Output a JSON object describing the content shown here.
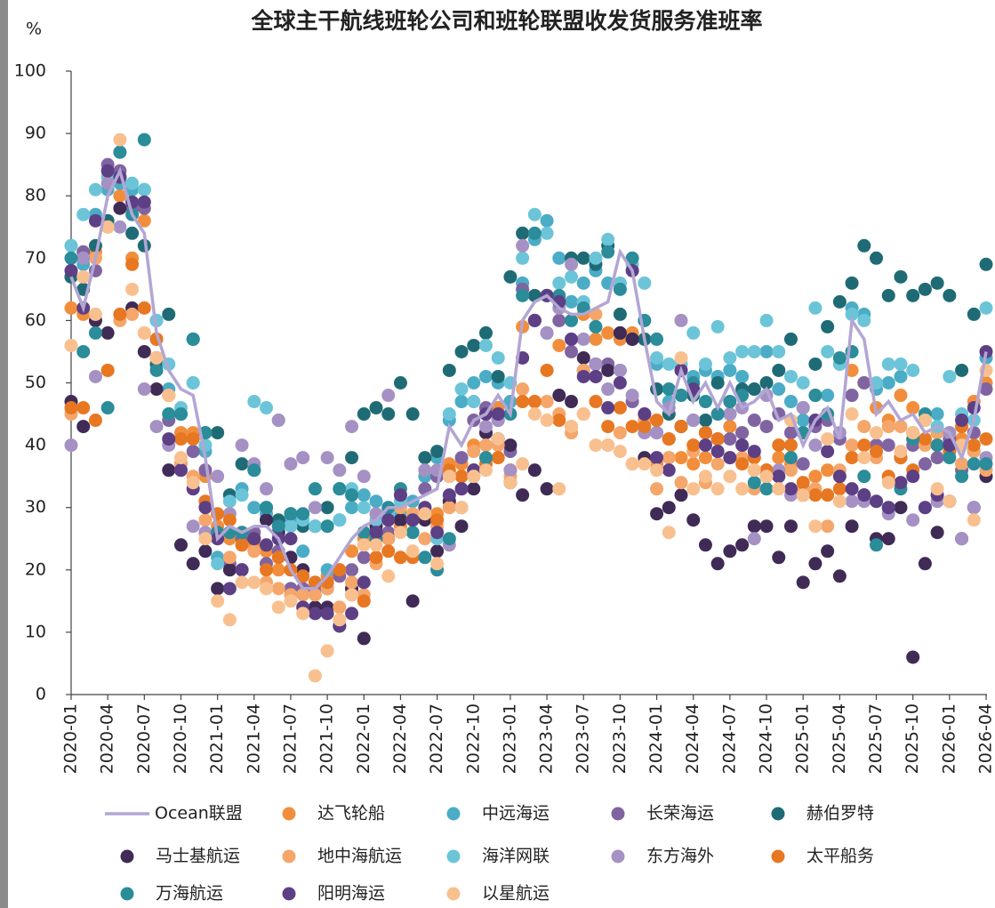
{
  "chart_data": {
    "type": "scatter",
    "title": "全球主干航线班轮公司和班轮联盟收发货服务准班率",
    "y_label": "%",
    "categories": [
      "2020-01",
      null,
      null,
      "2020-04",
      null,
      null,
      "2020-07",
      null,
      null,
      "2020-10",
      null,
      null,
      "2021-01",
      null,
      null,
      "2021-04",
      null,
      null,
      "2021-07",
      null,
      null,
      "2021-10",
      null,
      null,
      "2022-01",
      null,
      null,
      "2022-04",
      null,
      null,
      "2022-07",
      null,
      null,
      "2022-10",
      null,
      null,
      "2023-01",
      null,
      null,
      "2023-04",
      null,
      null,
      "2023-07",
      null,
      null,
      "2023-10",
      null,
      null,
      "2024-01",
      null,
      null,
      "2024-04",
      null,
      null,
      "2024-07",
      null,
      null,
      "2024-10",
      null,
      null,
      "2025-01",
      null,
      null,
      "2025-04",
      null,
      null,
      "2025-07",
      null,
      null,
      "2025-10",
      null,
      null,
      "2026-01",
      null,
      null,
      "2026-04"
    ],
    "ylim": [
      0,
      100
    ],
    "yticks": [
      0,
      10,
      20,
      30,
      40,
      50,
      60,
      70,
      80,
      90,
      100
    ],
    "grid": false,
    "series": [
      {
        "name": "Ocean联盟",
        "marker": "line",
        "color": "#b3a6d4",
        "values": [
          67,
          62,
          70,
          80,
          84,
          77,
          74,
          58,
          52,
          49,
          48,
          38,
          25,
          27,
          26,
          27,
          27,
          25,
          20,
          17,
          17,
          19,
          22,
          25,
          27,
          28,
          30,
          30,
          31,
          32,
          33,
          43,
          40,
          44,
          45,
          48,
          45,
          60,
          63,
          64,
          62,
          61,
          61,
          62,
          63,
          71,
          68,
          57,
          47,
          45,
          52,
          47,
          50,
          46,
          50,
          46,
          47,
          49,
          44,
          45,
          40,
          44,
          46,
          41,
          60,
          57,
          45,
          47,
          44,
          45,
          42,
          43,
          42,
          38,
          44,
          55
        ]
      },
      {
        "name": "达飞轮船",
        "marker": "circle",
        "color": "#f28e3b",
        "values": [
          62,
          61,
          71,
          75,
          80,
          70,
          76,
          57,
          48,
          42,
          42,
          35,
          27,
          25,
          26,
          24,
          23,
          20,
          20,
          20,
          18,
          19,
          20,
          23,
          25,
          26,
          28,
          27,
          28,
          29,
          29,
          37,
          37,
          40,
          42,
          46,
          36,
          59,
          60,
          64,
          56,
          63,
          61,
          57,
          58,
          57,
          58,
          44,
          37,
          38,
          38,
          37,
          38,
          41,
          43,
          42,
          36,
          36,
          38,
          37,
          32,
          35,
          36,
          35,
          52,
          50,
          46,
          44,
          48,
          46,
          44,
          42,
          40,
          41,
          47,
          50
        ]
      },
      {
        "name": "中远海运",
        "marker": "circle",
        "color": "#4bacc6",
        "values": [
          72,
          69,
          77,
          81,
          82,
          81,
          81,
          60,
          49,
          45,
          50,
          39,
          22,
          32,
          33,
          30,
          29,
          27,
          28,
          23,
          18,
          20,
          28,
          30,
          32,
          31,
          30,
          29,
          31,
          35,
          38,
          44,
          47,
          50,
          51,
          50,
          47,
          66,
          73,
          76,
          70,
          63,
          66,
          68,
          66,
          52,
          57,
          57,
          53,
          47,
          52,
          51,
          52,
          51,
          52,
          51,
          49,
          55,
          49,
          47,
          44,
          48,
          48,
          53,
          62,
          61,
          49,
          50,
          51,
          42,
          44,
          45,
          42,
          40,
          39,
          54
        ]
      },
      {
        "name": "长荣海运",
        "marker": "circle",
        "color": "#8064a2",
        "values": [
          67,
          71,
          68,
          85,
          84,
          78,
          78,
          54,
          44,
          37,
          39,
          36,
          26,
          21,
          25,
          26,
          21,
          23,
          17,
          17,
          17,
          17,
          19,
          20,
          22,
          25,
          26,
          28,
          28,
          33,
          35,
          35,
          38,
          44,
          46,
          44,
          39,
          65,
          60,
          58,
          60,
          55,
          52,
          51,
          53,
          58,
          47,
          45,
          42,
          41,
          43,
          44,
          42,
          41,
          41,
          42,
          44,
          43,
          45,
          42,
          37,
          43,
          44,
          41,
          48,
          50,
          40,
          40,
          38,
          40,
          37,
          38,
          41,
          36,
          42,
          49
        ]
      },
      {
        "name": "赫伯罗特",
        "marker": "circle",
        "color": "#1f6b75",
        "values": [
          67,
          65,
          72,
          76,
          83,
          74,
          72,
          53,
          61,
          45,
          57,
          42,
          42,
          32,
          37,
          36,
          30,
          28,
          29,
          27,
          27,
          30,
          33,
          38,
          45,
          46,
          45,
          50,
          45,
          38,
          39,
          52,
          55,
          56,
          58,
          51,
          67,
          74,
          64,
          64,
          63,
          70,
          70,
          69,
          72,
          61,
          57,
          57,
          49,
          45,
          43,
          48,
          44,
          50,
          45,
          49,
          49,
          50,
          52,
          57,
          46,
          53,
          59,
          63,
          66,
          72,
          70,
          64,
          67,
          64,
          65,
          66,
          64,
          52,
          61,
          69
        ]
      },
      {
        "name": "马士基航运",
        "marker": "circle",
        "color": "#3f2b56",
        "values": [
          47,
          43,
          60,
          58,
          78,
          62,
          55,
          49,
          36,
          24,
          21,
          23,
          17,
          20,
          20,
          25,
          28,
          26,
          22,
          20,
          14,
          14,
          11,
          17,
          9,
          27,
          25,
          28,
          15,
          28,
          23,
          31,
          27,
          33,
          42,
          41,
          40,
          32,
          36,
          33,
          48,
          47,
          54,
          53,
          52,
          58,
          57,
          38,
          29,
          30,
          32,
          28,
          24,
          21,
          23,
          24,
          27,
          27,
          22,
          27,
          18,
          21,
          23,
          19,
          27,
          32,
          25,
          25,
          30,
          6,
          21,
          26,
          31,
          25,
          30,
          35
        ]
      },
      {
        "name": "地中海航运",
        "marker": "circle",
        "color": "#f5a66b",
        "values": [
          45,
          62,
          70,
          52,
          60,
          61,
          58,
          57,
          45,
          37,
          35,
          28,
          25,
          22,
          24,
          23,
          18,
          17,
          16,
          16,
          16,
          17,
          14,
          18,
          16,
          21,
          25,
          30,
          29,
          25,
          27,
          30,
          35,
          39,
          40,
          40,
          35,
          49,
          47,
          47,
          45,
          42,
          52,
          61,
          40,
          42,
          37,
          44,
          33,
          38,
          34,
          39,
          34,
          37,
          38,
          38,
          33,
          36,
          36,
          36,
          33,
          33,
          27,
          36,
          40,
          43,
          38,
          43,
          43,
          41,
          40,
          42,
          39,
          37,
          39,
          36
        ]
      },
      {
        "name": "海洋网联",
        "marker": "circle",
        "color": "#6cc4d8",
        "values": [
          72,
          77,
          81,
          83,
          87,
          82,
          81,
          60,
          53,
          46,
          50,
          40,
          21,
          31,
          32,
          47,
          46,
          44,
          27,
          28,
          27,
          27,
          28,
          33,
          30,
          28,
          29,
          31,
          28,
          30,
          25,
          45,
          49,
          47,
          56,
          54,
          50,
          70,
          77,
          74,
          66,
          67,
          63,
          70,
          73,
          66,
          69,
          66,
          54,
          53,
          53,
          58,
          53,
          59,
          54,
          55,
          55,
          60,
          55,
          51,
          50,
          62,
          55,
          53,
          61,
          60,
          50,
          53,
          53,
          52,
          44,
          43,
          51,
          45,
          44,
          62
        ]
      },
      {
        "name": "东方海外",
        "marker": "circle",
        "color": "#a591c4",
        "values": [
          40,
          70,
          51,
          82,
          75,
          79,
          49,
          43,
          40,
          36,
          27,
          26,
          35,
          29,
          40,
          37,
          33,
          44,
          37,
          38,
          30,
          38,
          36,
          43,
          35,
          29,
          48,
          32,
          28,
          36,
          36,
          24,
          33,
          36,
          43,
          44,
          36,
          72,
          60,
          58,
          62,
          69,
          57,
          53,
          49,
          52,
          48,
          42,
          42,
          46,
          60,
          44,
          42,
          45,
          45,
          46,
          25,
          48,
          36,
          32,
          46,
          40,
          45,
          42,
          31,
          31,
          31,
          29,
          38,
          28,
          30,
          31,
          42,
          25,
          30,
          38
        ]
      },
      {
        "name": "太平船务",
        "marker": "circle",
        "color": "#e87722",
        "values": [
          46,
          46,
          44,
          52,
          61,
          69,
          62,
          57,
          48,
          41,
          41,
          31,
          29,
          28,
          24,
          25,
          20,
          22,
          20,
          19,
          18,
          18,
          20,
          16,
          15,
          22,
          23,
          22,
          22,
          29,
          28,
          36,
          35,
          36,
          37,
          38,
          34,
          47,
          47,
          52,
          44,
          43,
          45,
          47,
          43,
          46,
          43,
          43,
          44,
          41,
          43,
          40,
          42,
          41,
          38,
          37,
          38,
          36,
          40,
          40,
          34,
          32,
          32,
          33,
          38,
          40,
          39,
          35,
          38,
          36,
          41,
          40,
          39,
          43,
          40,
          41
        ]
      },
      {
        "name": "万海航运",
        "marker": "circle",
        "color": "#2b8c9a",
        "values": [
          70,
          55,
          58,
          46,
          87,
          77,
          89,
          52,
          45,
          45,
          57,
          42,
          26,
          26,
          26,
          36,
          30,
          27,
          29,
          29,
          33,
          27,
          33,
          32,
          26,
          25,
          30,
          33,
          26,
          22,
          20,
          25,
          30,
          35,
          38,
          41,
          45,
          64,
          74,
          64,
          64,
          60,
          62,
          59,
          71,
          65,
          70,
          60,
          57,
          49,
          48,
          50,
          47,
          45,
          47,
          48,
          34,
          33,
          35,
          38,
          42,
          48,
          45,
          54,
          55,
          35,
          24,
          30,
          33,
          41,
          45,
          40,
          38,
          35,
          37,
          37
        ]
      },
      {
        "name": "阳明海运",
        "marker": "circle",
        "color": "#5d3f85",
        "values": [
          68,
          62,
          76,
          84,
          83,
          79,
          79,
          54,
          41,
          36,
          33,
          30,
          25,
          17,
          20,
          25,
          24,
          25,
          25,
          14,
          13,
          13,
          11,
          13,
          18,
          26,
          28,
          32,
          28,
          30,
          26,
          32,
          33,
          36,
          45,
          45,
          34,
          54,
          60,
          64,
          63,
          57,
          51,
          51,
          46,
          50,
          68,
          45,
          38,
          36,
          52,
          49,
          40,
          39,
          38,
          40,
          39,
          35,
          35,
          33,
          32,
          44,
          39,
          35,
          33,
          32,
          31,
          30,
          34,
          35,
          30,
          32,
          40,
          44,
          46,
          55
        ]
      },
      {
        "name": "以星航运",
        "marker": "circle",
        "color": "#f9c08f",
        "values": [
          56,
          67,
          61,
          75,
          89,
          65,
          58,
          54,
          48,
          38,
          34,
          25,
          15,
          12,
          18,
          18,
          17,
          14,
          15,
          13,
          3,
          7,
          12,
          16,
          24,
          24,
          19,
          26,
          23,
          29,
          21,
          35,
          30,
          35,
          36,
          41,
          34,
          37,
          45,
          44,
          33,
          43,
          45,
          40,
          40,
          39,
          37,
          37,
          36,
          26,
          54,
          33,
          35,
          33,
          35,
          33,
          36,
          35,
          33,
          44,
          32,
          27,
          41,
          31,
          45,
          38,
          42,
          34,
          39,
          42,
          44,
          33,
          31,
          40,
          28,
          52
        ]
      }
    ]
  }
}
